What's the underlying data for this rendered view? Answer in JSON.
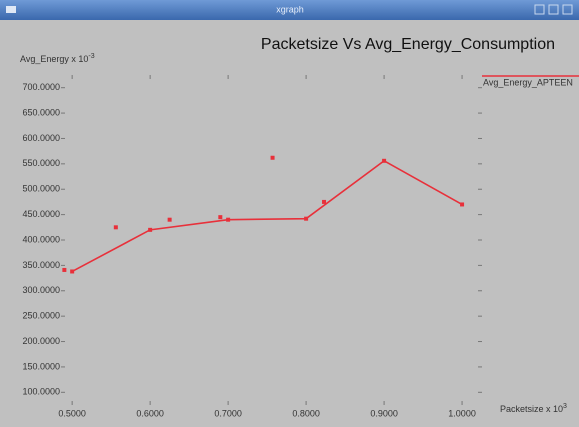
{
  "window_title": "xgraph",
  "chart_data": {
    "type": "line",
    "title": "Packetsize Vs Avg_Energy_Consumption",
    "ylabel": "Avg_Energy x 10",
    "ylabel_exponent": "-3",
    "xlabel": "Packetsize x 10",
    "xlabel_exponent": "3",
    "x": [
      0.5,
      0.6,
      0.7,
      0.8,
      0.9,
      1.0
    ],
    "series": [
      {
        "name": "Avg_Energy_APTEEN",
        "color": "#e8303a",
        "values": [
          338,
          420,
          440,
          442,
          556,
          470
        ]
      }
    ],
    "markers": {
      "color": "#e8303a",
      "x": [
        0.49,
        0.556,
        0.625,
        0.69,
        0.757,
        0.823
      ],
      "y": [
        341,
        425,
        440,
        445,
        562,
        475
      ]
    },
    "xlim": [
      0.478,
      1.023
    ],
    "ylim": [
      75,
      725
    ],
    "xticks": [
      {
        "value": 0.5,
        "label": "0.5000"
      },
      {
        "value": 0.6,
        "label": "0.6000"
      },
      {
        "value": 0.7,
        "label": "0.7000"
      },
      {
        "value": 0.8,
        "label": "0.8000"
      },
      {
        "value": 0.9,
        "label": "0.9000"
      },
      {
        "value": 1.0,
        "label": "1.0000"
      }
    ],
    "yticks": [
      {
        "value": 100,
        "label": "100.0000"
      },
      {
        "value": 150,
        "label": "150.0000"
      },
      {
        "value": 200,
        "label": "200.0000"
      },
      {
        "value": 250,
        "label": "250.0000"
      },
      {
        "value": 300,
        "label": "300.0000"
      },
      {
        "value": 350,
        "label": "350.0000"
      },
      {
        "value": 400,
        "label": "400.0000"
      },
      {
        "value": 450,
        "label": "450.0000"
      },
      {
        "value": 500,
        "label": "500.0000"
      },
      {
        "value": 550,
        "label": "550.0000"
      },
      {
        "value": 600,
        "label": "600.0000"
      },
      {
        "value": 650,
        "label": "650.0000"
      },
      {
        "value": 700,
        "label": "700.0000"
      }
    ],
    "grid": false,
    "legend": "top-right"
  }
}
